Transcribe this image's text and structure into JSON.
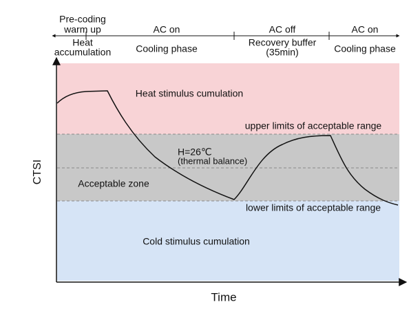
{
  "timeline": {
    "phases": [
      {
        "top": [
          "Pre-coding",
          "warm up"
        ],
        "bottom": [
          "Heat",
          "accumulation"
        ]
      },
      {
        "top": [
          "AC on"
        ],
        "bottom": [
          "Cooling phase"
        ]
      },
      {
        "top": [
          "AC off"
        ],
        "bottom": [
          "Recovery buffer",
          "(35min)"
        ]
      },
      {
        "top": [
          "AC on"
        ],
        "bottom": [
          "Cooling phase"
        ]
      }
    ]
  },
  "plot": {
    "y_axis_label": "CTSI",
    "x_axis_label": "Time",
    "zones": {
      "heat": "Heat stimulus cumulation",
      "acceptable": "Acceptable zone",
      "cold": "Cold stimulus cumulation"
    },
    "upper_limit": "upper limits of acceptable range",
    "lower_limit": "lower limits of acceptable range",
    "balance": [
      "H=26℃",
      "(thermal balance)"
    ]
  }
}
